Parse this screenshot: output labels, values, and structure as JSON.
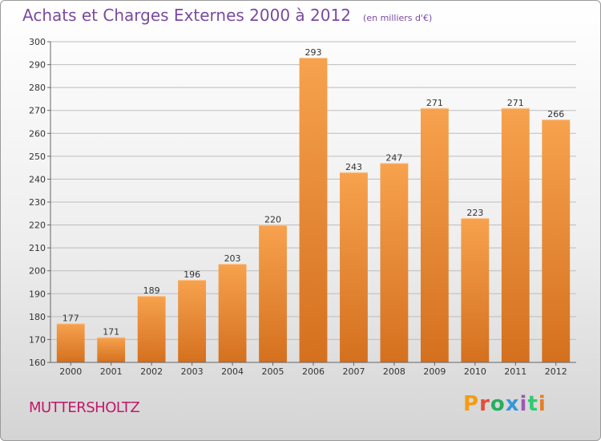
{
  "header": {
    "title": "Achats et Charges Externes 2000 à 2012",
    "unit": "(en milliers d'€)"
  },
  "footer": {
    "commune": "MUTTERSHOLTZ",
    "logo_text": "Proxiti",
    "logo_colors": [
      "#f39c12",
      "#e74c3c",
      "#27ae60",
      "#3498db",
      "#9b59b6",
      "#2ecc71",
      "#e67e22"
    ]
  },
  "chart_data": {
    "type": "bar",
    "title": "Achats et Charges Externes 2000 à 2012",
    "subtitle": "(en milliers d'€)",
    "categories": [
      "2000",
      "2001",
      "2002",
      "2003",
      "2004",
      "2005",
      "2006",
      "2007",
      "2008",
      "2009",
      "2010",
      "2011",
      "2012"
    ],
    "values": [
      177,
      171,
      189,
      196,
      203,
      220,
      293,
      243,
      247,
      271,
      223,
      271,
      266
    ],
    "ylim": [
      160,
      300
    ],
    "yticks": [
      160,
      170,
      180,
      190,
      200,
      210,
      220,
      230,
      240,
      250,
      260,
      270,
      280,
      290,
      300
    ],
    "grid": true,
    "bar_color_top": "#f7a24e",
    "bar_color_bottom": "#d4701e"
  }
}
